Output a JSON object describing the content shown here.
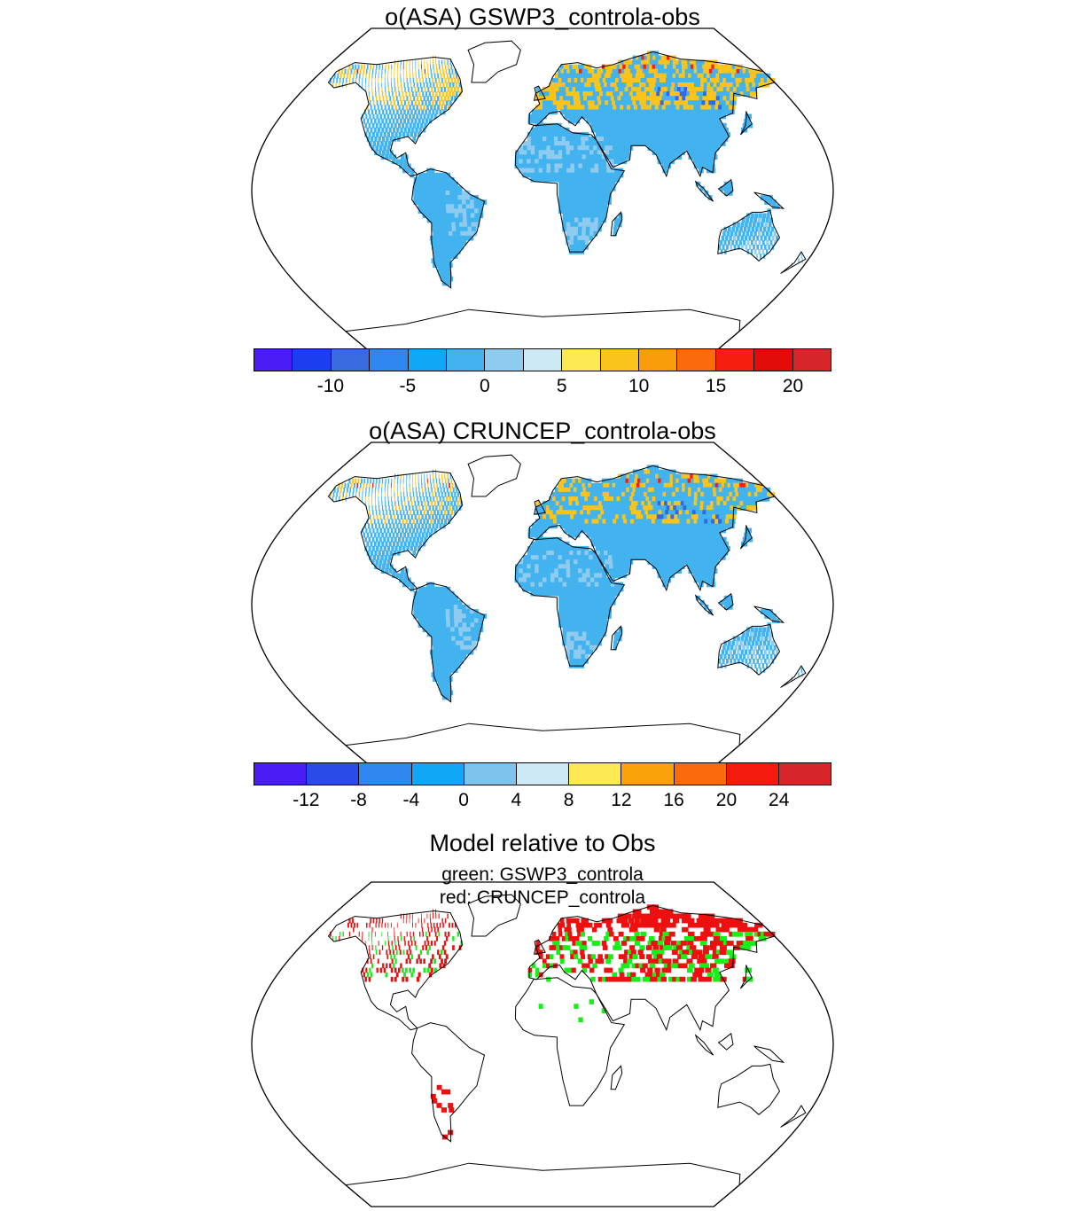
{
  "panel1": {
    "title": "o(ASA) GSWP3_controla-obs",
    "colorbar": {
      "colors": [
        "#4a1cf6",
        "#1c3df0",
        "#3a6ae0",
        "#2f86ee",
        "#10a8f4",
        "#42b3ee",
        "#8ecbee",
        "#cde9f6",
        "#fde952",
        "#fbc41c",
        "#fa9d0a",
        "#fb6a0b",
        "#f51e0f",
        "#e30a0a",
        "#d7262a"
      ],
      "tick_labels": [
        "-10",
        "-5",
        "0",
        "5",
        "10",
        "15",
        "20"
      ],
      "tick_boundaries": [
        2,
        4,
        6,
        8,
        10,
        12,
        14
      ]
    }
  },
  "panel2": {
    "title": "o(ASA) CRUNCEP_controla-obs",
    "colorbar": {
      "colors": [
        "#4a1cf6",
        "#2b4be8",
        "#2f86ee",
        "#10a8f4",
        "#7cc4ee",
        "#cde9f6",
        "#fde952",
        "#fba20a",
        "#fb6a0b",
        "#f51a10",
        "#d7262a"
      ],
      "tick_labels": [
        "-12",
        "-8",
        "-4",
        "0",
        "4",
        "8",
        "12",
        "16",
        "20",
        "24"
      ],
      "tick_boundaries": [
        1,
        2,
        3,
        4,
        5,
        6,
        7,
        8,
        9,
        10
      ]
    }
  },
  "panel3": {
    "title": "Model relative to Obs",
    "legend_green": "green: GSWP3_controla",
    "legend_red": "red: CRUNCEP_controla"
  },
  "map_colors": {
    "land_base": "#42b3ee",
    "land_light": "#8ecbee",
    "warm": "#fbc41c",
    "hot": "#f51e0f",
    "cool": "#2f6ae0",
    "green": "#18ee18",
    "red": "#ee1010"
  }
}
